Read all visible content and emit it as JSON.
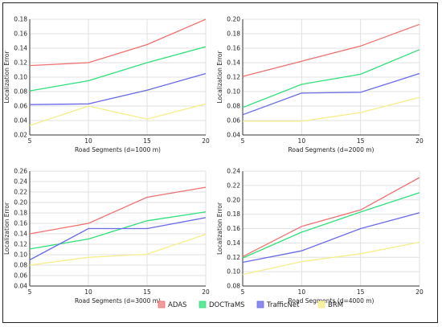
{
  "legend": {
    "placement": "bottom-center",
    "items": [
      {
        "label": "ADAS",
        "color": "#f07070",
        "fill": "#f49a9a"
      },
      {
        "label": "DOCTraMS",
        "color": "#2ee07a",
        "fill": "#5fe89a"
      },
      {
        "label": "TrafficNet",
        "color": "#6a6ae8",
        "fill": "#8a8af0"
      },
      {
        "label": "BRM",
        "color": "#f5ee8a",
        "fill": "#f7f0a0"
      }
    ]
  },
  "chart_data": [
    {
      "type": "line",
      "xlabel": "Road Segments (d=1000 m)",
      "ylabel": "Localization Error",
      "x": [
        5,
        10,
        15,
        20
      ],
      "xticks": [
        "5",
        "10",
        "15",
        "20"
      ],
      "ylim": [
        0.02,
        0.18
      ],
      "yticks": [
        "0.02",
        "0.04",
        "0.06",
        "0.08",
        "0.10",
        "0.12",
        "0.14",
        "0.16",
        "0.18"
      ],
      "grid": true,
      "series": [
        {
          "name": "ADAS",
          "values": [
            0.116,
            0.12,
            0.145,
            0.18
          ]
        },
        {
          "name": "DOCTraMS",
          "values": [
            0.081,
            0.095,
            0.12,
            0.142
          ]
        },
        {
          "name": "TrafficNet",
          "values": [
            0.062,
            0.063,
            0.082,
            0.105
          ]
        },
        {
          "name": "BRM",
          "values": [
            0.033,
            0.06,
            0.042,
            0.063
          ]
        }
      ]
    },
    {
      "type": "line",
      "xlabel": "Road Segments (d=2000 m)",
      "ylabel": "Localization Error",
      "x": [
        5,
        10,
        15,
        20
      ],
      "xticks": [
        "5",
        "10",
        "15",
        "20"
      ],
      "ylim": [
        0.04,
        0.2
      ],
      "yticks": [
        "0.04",
        "0.06",
        "0.08",
        "0.10",
        "0.12",
        "0.14",
        "0.16",
        "0.18",
        "0.20"
      ],
      "grid": true,
      "series": [
        {
          "name": "ADAS",
          "values": [
            0.121,
            0.142,
            0.163,
            0.193
          ]
        },
        {
          "name": "DOCTraMS",
          "values": [
            0.078,
            0.11,
            0.124,
            0.158
          ]
        },
        {
          "name": "TrafficNet",
          "values": [
            0.068,
            0.098,
            0.099,
            0.125
          ]
        },
        {
          "name": "BRM",
          "values": [
            0.059,
            0.059,
            0.071,
            0.092
          ]
        }
      ]
    },
    {
      "type": "line",
      "xlabel": "Road Segments (d=3000 m)",
      "ylabel": "Localization Error",
      "x": [
        5,
        10,
        15,
        20
      ],
      "xticks": [
        "5",
        "10",
        "15",
        "20"
      ],
      "ylim": [
        0.04,
        0.26
      ],
      "yticks": [
        "0.04",
        "0.06",
        "0.08",
        "0.10",
        "0.12",
        "0.14",
        "0.16",
        "0.18",
        "0.20",
        "0.22",
        "0.24",
        "0.26"
      ],
      "grid": true,
      "series": [
        {
          "name": "ADAS",
          "values": [
            0.14,
            0.16,
            0.21,
            0.229
          ]
        },
        {
          "name": "DOCTraMS",
          "values": [
            0.111,
            0.13,
            0.165,
            0.182
          ]
        },
        {
          "name": "TrafficNet",
          "values": [
            0.09,
            0.15,
            0.15,
            0.171
          ]
        },
        {
          "name": "BRM",
          "values": [
            0.08,
            0.095,
            0.101,
            0.139
          ]
        }
      ]
    },
    {
      "type": "line",
      "xlabel": "Road Segments (d=4000 m)",
      "ylabel": "Localization Error",
      "x": [
        5,
        10,
        15,
        20
      ],
      "xticks": [
        "5",
        "10",
        "15",
        "20"
      ],
      "ylim": [
        0.08,
        0.24
      ],
      "yticks": [
        "0.08",
        "0.10",
        "0.12",
        "0.14",
        "0.16",
        "0.18",
        "0.20",
        "0.22",
        "0.24"
      ],
      "grid": true,
      "series": [
        {
          "name": "ADAS",
          "values": [
            0.121,
            0.163,
            0.186,
            0.231
          ]
        },
        {
          "name": "DOCTraMS",
          "values": [
            0.119,
            0.155,
            0.183,
            0.21
          ]
        },
        {
          "name": "TrafficNet",
          "values": [
            0.113,
            0.129,
            0.16,
            0.182
          ]
        },
        {
          "name": "BRM",
          "values": [
            0.096,
            0.114,
            0.125,
            0.141
          ]
        }
      ]
    }
  ]
}
